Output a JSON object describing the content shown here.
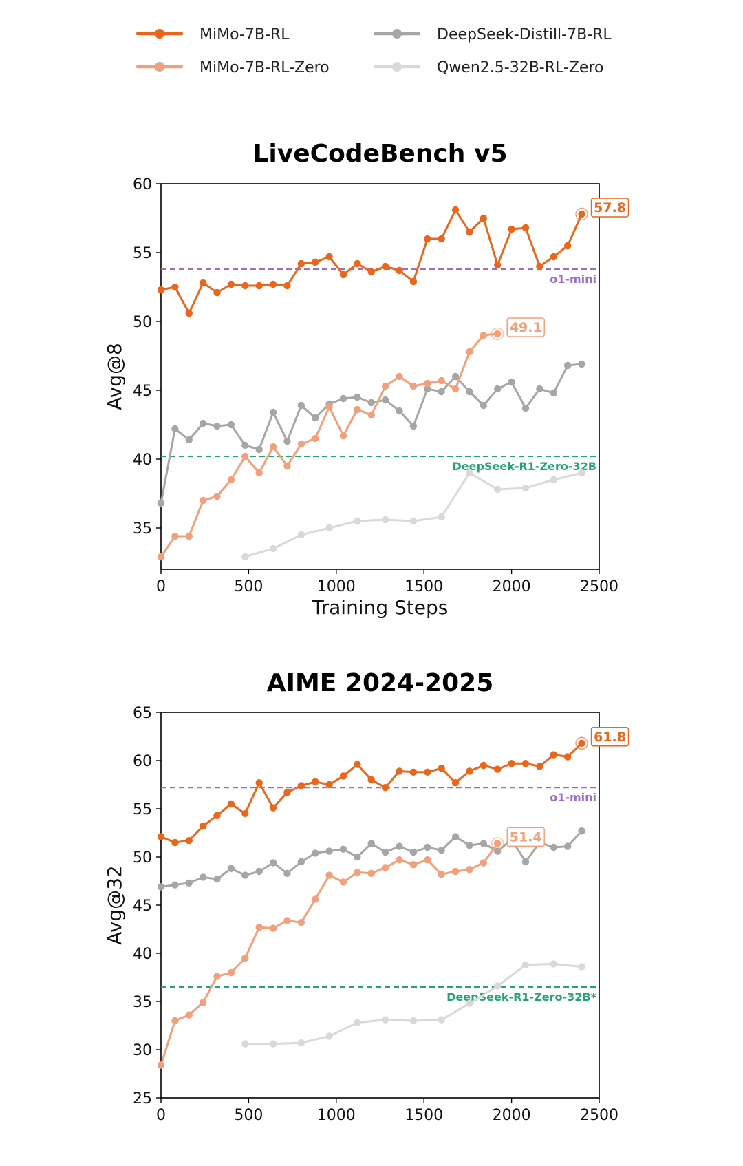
{
  "legend": {
    "items": [
      {
        "name": "MiMo-7B-RL",
        "color": "#E8671C"
      },
      {
        "name": "MiMo-7B-RL-Zero",
        "color": "#F0A07A"
      },
      {
        "name": "DeepSeek-Distill-7B-RL",
        "color": "#A6A6A6"
      },
      {
        "name": "Qwen2.5-32B-RL-Zero",
        "color": "#D9D9D9"
      }
    ]
  },
  "chart_data": [
    {
      "type": "line",
      "title": "LiveCodeBench v5",
      "xlabel": "Training Steps",
      "ylabel": "Avg@8",
      "xlim": [
        0,
        2500
      ],
      "ylim": [
        32,
        60
      ],
      "xticks": [
        "0",
        "500",
        "1000",
        "1500",
        "2000",
        "2500"
      ],
      "xtick_values": [
        0,
        500,
        1000,
        1500,
        2000,
        2500
      ],
      "yticks": [
        "35",
        "40",
        "45",
        "50",
        "55",
        "60"
      ],
      "ytick_values": [
        35,
        40,
        45,
        50,
        55,
        60
      ],
      "grid": false,
      "reference_lines": [
        {
          "label": "o1-mini",
          "y": 53.8,
          "color": "#9B6FC4"
        },
        {
          "label": "DeepSeek-R1-Zero-32B",
          "y": 40.2,
          "color": "#21A672"
        }
      ],
      "series": [
        {
          "name": "MiMo-7B-RL",
          "color": "#E8671C",
          "end_label": "57.8",
          "x": [
            0,
            80,
            160,
            240,
            320,
            400,
            480,
            560,
            640,
            720,
            800,
            880,
            960,
            1040,
            1120,
            1200,
            1280,
            1360,
            1440,
            1520,
            1600,
            1680,
            1760,
            1840,
            1920,
            2000,
            2080,
            2160,
            2240,
            2320,
            2400
          ],
          "y": [
            52.3,
            52.5,
            50.6,
            52.8,
            52.1,
            52.7,
            52.6,
            52.6,
            52.7,
            52.6,
            54.2,
            54.3,
            54.7,
            53.4,
            54.2,
            53.6,
            54.0,
            53.7,
            52.9,
            56.0,
            56.0,
            58.1,
            56.5,
            57.5,
            54.1,
            56.7,
            56.8,
            54.0,
            54.7,
            55.5,
            57.8
          ]
        },
        {
          "name": "MiMo-7B-RL-Zero",
          "color": "#F0A07A",
          "end_label": "49.1",
          "x": [
            0,
            80,
            160,
            240,
            320,
            400,
            480,
            560,
            640,
            720,
            800,
            880,
            960,
            1040,
            1120,
            1200,
            1280,
            1360,
            1440,
            1520,
            1600,
            1680,
            1760,
            1840,
            1920
          ],
          "y": [
            32.9,
            34.4,
            34.4,
            37.0,
            37.3,
            38.5,
            40.2,
            39.0,
            40.9,
            39.5,
            41.1,
            41.5,
            43.8,
            41.7,
            43.6,
            43.2,
            45.3,
            46.0,
            45.3,
            45.5,
            45.7,
            45.1,
            47.8,
            49.0,
            49.1
          ]
        },
        {
          "name": "DeepSeek-Distill-7B-RL",
          "color": "#A6A6A6",
          "x": [
            0,
            80,
            160,
            240,
            320,
            400,
            480,
            560,
            640,
            720,
            800,
            880,
            960,
            1040,
            1120,
            1200,
            1280,
            1360,
            1440,
            1520,
            1600,
            1680,
            1760,
            1840,
            1920,
            2000,
            2080,
            2160,
            2240,
            2320,
            2400
          ],
          "y": [
            36.8,
            42.2,
            41.4,
            42.6,
            42.4,
            42.5,
            41.0,
            40.7,
            43.4,
            41.3,
            43.9,
            43.0,
            44.0,
            44.4,
            44.5,
            44.1,
            44.3,
            43.5,
            42.4,
            45.1,
            44.9,
            46.0,
            44.9,
            43.9,
            45.1,
            45.6,
            43.7,
            45.1,
            44.8,
            46.8,
            46.9
          ]
        },
        {
          "name": "Qwen2.5-32B-RL-Zero",
          "color": "#D9D9D9",
          "x": [
            480,
            640,
            800,
            960,
            1120,
            1280,
            1440,
            1600,
            1760,
            1920,
            2080,
            2240,
            2400
          ],
          "y": [
            32.9,
            33.5,
            34.5,
            35.0,
            35.5,
            35.6,
            35.5,
            35.8,
            39.0,
            37.8,
            37.9,
            38.5,
            39.0
          ]
        }
      ]
    },
    {
      "type": "line",
      "title": "AIME 2024-2025",
      "xlabel": "",
      "ylabel": "Avg@32",
      "xlim": [
        0,
        2500
      ],
      "ylim": [
        25,
        65
      ],
      "xticks": [
        "0",
        "500",
        "1000",
        "1500",
        "2000",
        "2500"
      ],
      "xtick_values": [
        0,
        500,
        1000,
        1500,
        2000,
        2500
      ],
      "yticks": [
        "25",
        "30",
        "35",
        "40",
        "45",
        "50",
        "55",
        "60",
        "65"
      ],
      "ytick_values": [
        25,
        30,
        35,
        40,
        45,
        50,
        55,
        60,
        65
      ],
      "grid": false,
      "reference_lines": [
        {
          "label": "o1-mini",
          "y": 57.2,
          "color": "#9B6FC4"
        },
        {
          "label": "DeepSeek-R1-Zero-32B*",
          "y": 36.5,
          "color": "#21A672"
        }
      ],
      "series": [
        {
          "name": "MiMo-7B-RL",
          "color": "#E8671C",
          "end_label": "61.8",
          "x": [
            0,
            80,
            160,
            240,
            320,
            400,
            480,
            560,
            640,
            720,
            800,
            880,
            960,
            1040,
            1120,
            1200,
            1280,
            1360,
            1440,
            1520,
            1600,
            1680,
            1760,
            1840,
            1920,
            2000,
            2080,
            2160,
            2240,
            2320,
            2400
          ],
          "y": [
            52.1,
            51.5,
            51.7,
            53.2,
            54.3,
            55.5,
            54.5,
            57.7,
            55.1,
            56.7,
            57.4,
            57.8,
            57.5,
            58.4,
            59.6,
            58.0,
            57.2,
            58.9,
            58.8,
            58.8,
            59.2,
            57.7,
            58.9,
            59.5,
            59.1,
            59.7,
            59.7,
            59.4,
            60.6,
            60.4,
            61.8
          ]
        },
        {
          "name": "MiMo-7B-RL-Zero",
          "color": "#F0A07A",
          "end_label": "51.4",
          "x": [
            0,
            80,
            160,
            240,
            320,
            400,
            480,
            560,
            640,
            720,
            800,
            880,
            960,
            1040,
            1120,
            1200,
            1280,
            1360,
            1440,
            1520,
            1600,
            1680,
            1760,
            1840,
            1920
          ],
          "y": [
            28.4,
            33.0,
            33.6,
            34.9,
            37.6,
            38.0,
            39.5,
            42.7,
            42.6,
            43.4,
            43.2,
            45.6,
            48.1,
            47.4,
            48.4,
            48.3,
            48.9,
            49.7,
            49.2,
            49.7,
            48.2,
            48.5,
            48.7,
            49.4,
            51.4
          ]
        },
        {
          "name": "DeepSeek-Distill-7B-RL",
          "color": "#A6A6A6",
          "x": [
            0,
            80,
            160,
            240,
            320,
            400,
            480,
            560,
            640,
            720,
            800,
            880,
            960,
            1040,
            1120,
            1200,
            1280,
            1360,
            1440,
            1520,
            1600,
            1680,
            1760,
            1840,
            1920,
            2000,
            2080,
            2160,
            2240,
            2320,
            2400
          ],
          "y": [
            46.9,
            47.1,
            47.3,
            47.9,
            47.7,
            48.8,
            48.1,
            48.5,
            49.4,
            48.3,
            49.5,
            50.4,
            50.6,
            50.8,
            50.0,
            51.4,
            50.5,
            51.1,
            50.5,
            51.0,
            50.7,
            52.1,
            51.2,
            51.4,
            50.6,
            51.8,
            49.5,
            51.5,
            51.0,
            51.1,
            52.7
          ]
        },
        {
          "name": "Qwen2.5-32B-RL-Zero",
          "color": "#D9D9D9",
          "x": [
            480,
            640,
            800,
            960,
            1120,
            1280,
            1440,
            1600,
            1760,
            1920,
            2080,
            2240,
            2400
          ],
          "y": [
            30.6,
            30.6,
            30.7,
            31.4,
            32.8,
            33.1,
            33.0,
            33.1,
            34.8,
            36.6,
            38.8,
            38.9,
            38.6
          ]
        }
      ]
    }
  ]
}
